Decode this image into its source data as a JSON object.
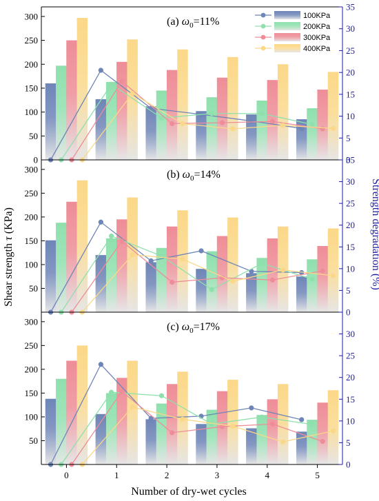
{
  "chart_data": [
    {
      "type": "bar",
      "panel_label": "(a) ",
      "omega_symbol": "ω",
      "omega_sub": "0",
      "omega_value": "=11%",
      "categories": [
        "0",
        "1",
        "2",
        "3",
        "4",
        "5"
      ],
      "series": [
        {
          "name": "100KPa",
          "color": "#6e85b7",
          "values": [
            160,
            127,
            112,
            102,
            95,
            85
          ],
          "degradation": [
            0,
            20.5,
            11.8,
            10.4,
            8.9,
            7.2
          ]
        },
        {
          "name": "200KPa",
          "color": "#8fe0ad",
          "values": [
            197,
            163,
            145,
            131,
            124,
            108
          ],
          "degradation": [
            0,
            17.3,
            9.6,
            10.6,
            10.6,
            8.1
          ]
        },
        {
          "name": "300KPa",
          "color": "#ee8d97",
          "values": [
            250,
            205,
            188,
            172,
            167,
            147
          ],
          "degradation": [
            0,
            18.0,
            8.3,
            8.5,
            8.8,
            7.1
          ]
        },
        {
          "name": "400KPa",
          "color": "#fbd889",
          "values": [
            297,
            252,
            231,
            215,
            200,
            184
          ],
          "degradation": [
            0,
            15.2,
            8.3,
            7.1,
            7.9,
            7.2
          ]
        }
      ],
      "ylim": [
        0,
        320
      ],
      "y2lim": [
        0,
        35
      ]
    },
    {
      "type": "bar",
      "panel_label": "(b) ",
      "omega_symbol": "ω",
      "omega_sub": "0",
      "omega_value": "=14%",
      "categories": [
        "0",
        "1",
        "2",
        "3",
        "4",
        "5"
      ],
      "series": [
        {
          "name": "100KPa",
          "color": "#6e85b7",
          "values": [
            151,
            120,
            105,
            91,
            82,
            75
          ],
          "degradation": [
            0,
            20.7,
            11.8,
            14.1,
            9.4,
            9.1
          ]
        },
        {
          "name": "200KPa",
          "color": "#8fe0ad",
          "values": [
            188,
            155,
            135,
            128,
            114,
            111
          ],
          "degradation": [
            0,
            17.5,
            12.9,
            5.2,
            11.2,
            7.6
          ]
        },
        {
          "name": "300KPa",
          "color": "#ee8d97",
          "values": [
            232,
            195,
            180,
            160,
            155,
            139
          ],
          "degradation": [
            0,
            16.3,
            6.9,
            7.9,
            7.4,
            9.5
          ]
        },
        {
          "name": "400KPa",
          "color": "#fbd889",
          "values": [
            277,
            241,
            214,
            199,
            180,
            176
          ],
          "degradation": [
            0,
            13.2,
            12.2,
            7.1,
            9.7,
            8.4
          ]
        }
      ],
      "ylim": [
        0,
        320
      ],
      "y2lim": [
        0,
        35
      ]
    },
    {
      "type": "bar",
      "panel_label": "(c) ",
      "omega_symbol": "ω",
      "omega_sub": "0",
      "omega_value": "=17%",
      "categories": [
        "0",
        "1",
        "2",
        "3",
        "4",
        "5"
      ],
      "series": [
        {
          "name": "100KPa",
          "color": "#6e85b7",
          "values": [
            138,
            106,
            95,
            85,
            76,
            69
          ],
          "degradation": [
            0,
            23.0,
            10.6,
            11.1,
            13.0,
            10.3
          ]
        },
        {
          "name": "200KPa",
          "color": "#8fe0ad",
          "values": [
            180,
            150,
            128,
            115,
            104,
            94
          ],
          "degradation": [
            0,
            16.6,
            15.8,
            9.3,
            10.9,
            9.2
          ]
        },
        {
          "name": "300KPa",
          "color": "#ee8d97",
          "values": [
            218,
            182,
            169,
            154,
            137,
            130
          ],
          "degradation": [
            0,
            16.8,
            7.3,
            8.7,
            9.3,
            5.3
          ]
        },
        {
          "name": "400KPa",
          "color": "#fbd889",
          "values": [
            250,
            218,
            195,
            178,
            169,
            156
          ],
          "degradation": [
            0,
            13.2,
            10.4,
            8.8,
            5.2,
            7.7
          ]
        }
      ],
      "ylim": [
        0,
        320
      ],
      "y2lim": [
        0,
        35
      ]
    }
  ],
  "axes": {
    "xlabel": "Number of dry-wet cycles",
    "ylabel_prefix": "Shear strength ",
    "ylabel_symbol": "τ",
    "ylabel_suffix": " (KPa)",
    "y2label": "Strength degradation (%)",
    "y2_color": "#1a1aa8",
    "yticks": [
      "0",
      "50",
      "100",
      "150",
      "200",
      "250",
      "300"
    ],
    "y2ticks": [
      "0",
      "5",
      "10",
      "15",
      "20",
      "25",
      "30",
      "35"
    ],
    "grid": false
  },
  "legend": {
    "placement": "top-right",
    "labels": [
      "100KPa",
      "200KPa",
      "300KPa",
      "400KPa"
    ]
  }
}
